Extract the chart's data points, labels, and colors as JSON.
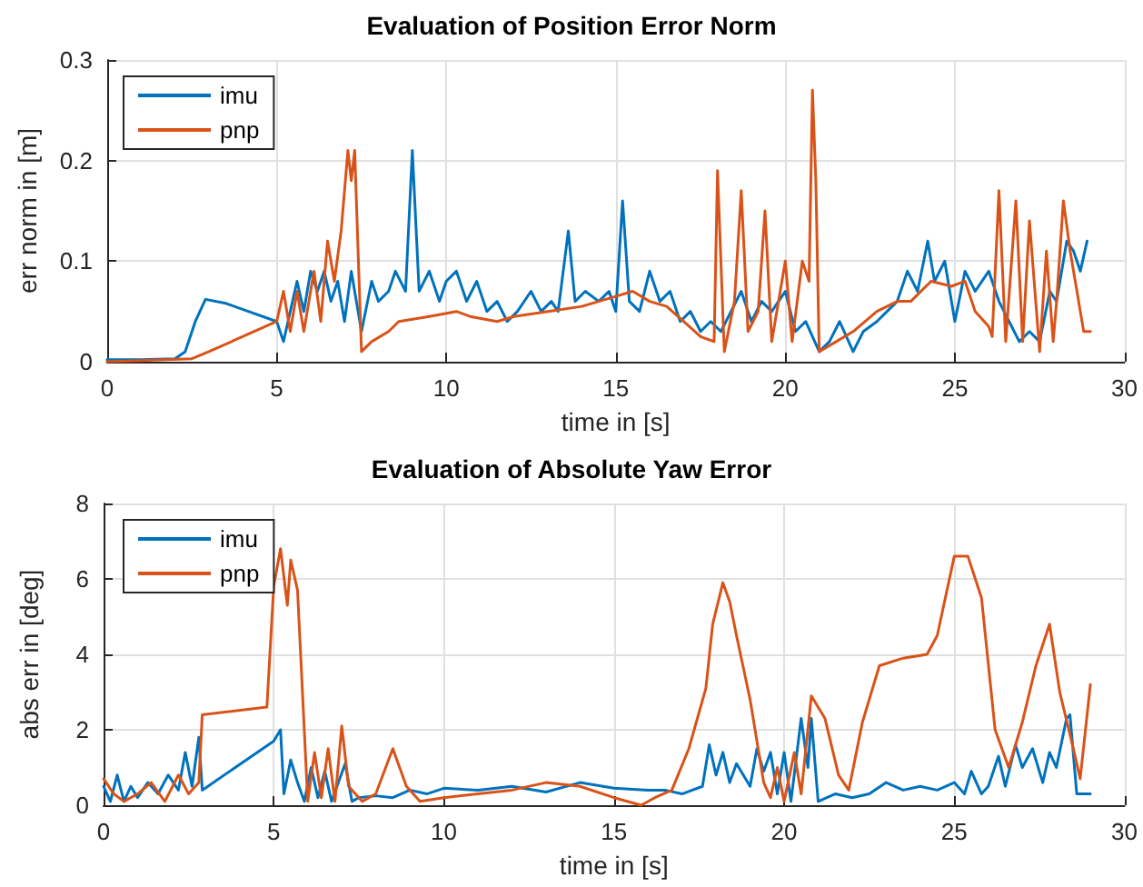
{
  "chart_data": [
    {
      "type": "line",
      "title": "Evaluation of Position Error Norm",
      "xlabel": "time in [s]",
      "ylabel": "err norm in [m]",
      "xlim": [
        0,
        30
      ],
      "xticks": [
        0,
        5,
        10,
        15,
        20,
        25,
        30
      ],
      "ylim": [
        0,
        0.3
      ],
      "yticks": [
        0,
        0.1,
        0.2,
        0.3
      ],
      "grid": true,
      "legend": "top left",
      "series": [
        {
          "name": "imu",
          "color": "#0072bd",
          "x": [
            0,
            1,
            2,
            2.3,
            2.6,
            2.9,
            3.5,
            5,
            5.2,
            5.4,
            5.6,
            5.8,
            6,
            6.2,
            6.4,
            6.6,
            6.8,
            7,
            7.2,
            7.5,
            7.8,
            8,
            8.3,
            8.5,
            8.8,
            9,
            9.2,
            9.5,
            9.8,
            10,
            10.3,
            10.6,
            10.9,
            11.2,
            11.5,
            11.8,
            12.1,
            12.5,
            12.8,
            13.1,
            13.3,
            13.6,
            13.8,
            14.1,
            14.5,
            14.8,
            15,
            15.2,
            15.4,
            15.7,
            16,
            16.3,
            16.6,
            16.9,
            17.2,
            17.5,
            17.8,
            18.1,
            18.4,
            18.7,
            19,
            19.3,
            19.6,
            20,
            20.3,
            20.6,
            21,
            21.3,
            21.6,
            22,
            22.3,
            22.7,
            23,
            23.3,
            23.6,
            23.9,
            24.2,
            24.4,
            24.7,
            25,
            25.3,
            25.6,
            26,
            26.3,
            26.6,
            26.9,
            27.2,
            27.5,
            27.8,
            28,
            28.3,
            28.5,
            28.7,
            28.9
          ],
          "values": [
            0.002,
            0.002,
            0.003,
            0.01,
            0.04,
            0.062,
            0.058,
            0.04,
            0.02,
            0.05,
            0.08,
            0.05,
            0.09,
            0.07,
            0.09,
            0.06,
            0.08,
            0.04,
            0.09,
            0.03,
            0.08,
            0.06,
            0.07,
            0.09,
            0.07,
            0.21,
            0.07,
            0.09,
            0.06,
            0.08,
            0.09,
            0.06,
            0.08,
            0.05,
            0.06,
            0.04,
            0.05,
            0.07,
            0.05,
            0.06,
            0.05,
            0.13,
            0.06,
            0.07,
            0.06,
            0.07,
            0.05,
            0.16,
            0.06,
            0.05,
            0.09,
            0.06,
            0.07,
            0.04,
            0.05,
            0.03,
            0.04,
            0.03,
            0.05,
            0.07,
            0.04,
            0.06,
            0.05,
            0.07,
            0.03,
            0.04,
            0.01,
            0.02,
            0.04,
            0.01,
            0.03,
            0.04,
            0.05,
            0.06,
            0.09,
            0.07,
            0.12,
            0.08,
            0.1,
            0.04,
            0.09,
            0.07,
            0.09,
            0.06,
            0.04,
            0.02,
            0.03,
            0.02,
            0.07,
            0.06,
            0.12,
            0.11,
            0.09,
            0.12
          ]
        },
        {
          "name": "pnp",
          "color": "#d95319",
          "x": [
            0,
            2.5,
            3,
            5,
            5.2,
            5.4,
            5.6,
            5.8,
            6.1,
            6.3,
            6.5,
            6.7,
            6.9,
            7.1,
            7.2,
            7.3,
            7.5,
            7.8,
            8.3,
            8.6,
            9.5,
            10.3,
            10.7,
            11.5,
            12,
            13,
            14,
            15,
            15.5,
            16,
            16.5,
            17,
            17.5,
            17.9,
            18,
            18.2,
            18.5,
            18.7,
            18.9,
            19.2,
            19.4,
            19.6,
            20,
            20.2,
            20.5,
            20.7,
            20.8,
            20.9,
            21,
            21.5,
            22,
            22.7,
            23.3,
            23.7,
            24.3,
            24.9,
            25.3,
            25.6,
            26,
            26.1,
            26.3,
            26.5,
            26.8,
            27,
            27.2,
            27.5,
            27.7,
            27.9,
            28,
            28.2,
            28.4,
            28.8,
            29
          ],
          "values": [
            0,
            0.003,
            0.01,
            0.04,
            0.07,
            0.03,
            0.07,
            0.03,
            0.09,
            0.04,
            0.12,
            0.08,
            0.13,
            0.21,
            0.18,
            0.21,
            0.01,
            0.02,
            0.03,
            0.04,
            0.045,
            0.05,
            0.045,
            0.04,
            0.045,
            0.05,
            0.055,
            0.065,
            0.07,
            0.06,
            0.055,
            0.04,
            0.025,
            0.02,
            0.19,
            0.01,
            0.06,
            0.17,
            0.03,
            0.05,
            0.15,
            0.02,
            0.1,
            0.02,
            0.1,
            0.08,
            0.27,
            0.18,
            0.01,
            0.02,
            0.03,
            0.05,
            0.06,
            0.06,
            0.08,
            0.075,
            0.08,
            0.05,
            0.035,
            0.025,
            0.17,
            0.02,
            0.16,
            0.02,
            0.14,
            0.01,
            0.11,
            0.02,
            0.06,
            0.16,
            0.11,
            0.03,
            0.03
          ]
        }
      ]
    },
    {
      "type": "line",
      "title": "Evaluation of Absolute Yaw Error",
      "xlabel": "time in [s]",
      "ylabel": "abs err in [deg]",
      "xlim": [
        0,
        30
      ],
      "xticks": [
        0,
        5,
        10,
        15,
        20,
        25,
        30
      ],
      "ylim": [
        0,
        8
      ],
      "yticks": [
        0,
        2,
        4,
        6,
        8
      ],
      "grid": true,
      "legend": "top left",
      "series": [
        {
          "name": "imu",
          "color": "#0072bd",
          "x": [
            0,
            0.2,
            0.4,
            0.6,
            0.8,
            1,
            1.3,
            1.6,
            1.9,
            2.2,
            2.4,
            2.6,
            2.8,
            2.9,
            5,
            5.2,
            5.3,
            5.5,
            5.7,
            5.9,
            6.1,
            6.3,
            6.5,
            6.7,
            6.9,
            7.1,
            7.3,
            7.5,
            8,
            8.5,
            9,
            9.5,
            10,
            11,
            12,
            13,
            14,
            15,
            16,
            16.5,
            17,
            17.6,
            17.8,
            18,
            18.2,
            18.4,
            18.6,
            18.8,
            19,
            19.2,
            19.4,
            19.6,
            19.8,
            20,
            20.2,
            20.5,
            20.7,
            20.8,
            21,
            21.5,
            22,
            22.5,
            23,
            23.5,
            24,
            24.5,
            25,
            25.3,
            25.5,
            25.8,
            26,
            26.3,
            26.5,
            26.8,
            27,
            27.3,
            27.6,
            27.8,
            28,
            28.3,
            28.4,
            28.6,
            29
          ],
          "values": [
            0.5,
            0.1,
            0.8,
            0.1,
            0.5,
            0.2,
            0.6,
            0.3,
            0.8,
            0.4,
            1.4,
            0.5,
            1.8,
            0.4,
            1.7,
            2,
            0.3,
            1.2,
            0.6,
            0.1,
            1,
            0.2,
            0.9,
            0.1,
            0.6,
            1.1,
            0.1,
            0.2,
            0.25,
            0.2,
            0.4,
            0.3,
            0.45,
            0.4,
            0.5,
            0.35,
            0.6,
            0.45,
            0.4,
            0.4,
            0.3,
            0.5,
            1.6,
            0.8,
            1.4,
            0.6,
            1.1,
            0.8,
            0.5,
            1.5,
            0.9,
            1.4,
            0.3,
            1.4,
            0.1,
            2.3,
            1,
            2.3,
            0.1,
            0.3,
            0.2,
            0.3,
            0.6,
            0.4,
            0.5,
            0.4,
            0.6,
            0.3,
            0.9,
            0.3,
            0.5,
            1.3,
            0.5,
            1.6,
            1,
            1.5,
            0.6,
            1.4,
            1,
            2.3,
            2.4,
            0.3,
            0.3
          ]
        },
        {
          "name": "pnp",
          "color": "#d95319",
          "x": [
            0,
            0.3,
            0.6,
            1,
            1.4,
            1.8,
            2.2,
            2.5,
            2.8,
            2.9,
            4.8,
            5,
            5.2,
            5.4,
            5.5,
            5.7,
            6,
            6.2,
            6.4,
            6.6,
            6.8,
            7,
            7.2,
            7.6,
            8,
            8.5,
            8.9,
            9.3,
            10,
            11,
            12,
            13,
            14,
            15,
            15.8,
            16.2,
            16.7,
            17.2,
            17.7,
            17.9,
            18.2,
            18.4,
            18.6,
            19,
            19.4,
            19.6,
            19.8,
            20,
            20.3,
            20.5,
            20.8,
            21.2,
            21.6,
            21.9,
            22.3,
            22.8,
            23.5,
            24.2,
            24.5,
            25,
            25.4,
            25.8,
            26.2,
            26.6,
            27,
            27.4,
            27.8,
            28.1,
            28.5,
            28.7,
            29
          ],
          "values": [
            0.7,
            0.3,
            0.1,
            0.3,
            0.6,
            0.1,
            0.8,
            0.3,
            0.6,
            2.4,
            2.6,
            5.8,
            6.8,
            5.3,
            6.5,
            5.7,
            0.1,
            1.4,
            0.2,
            1.5,
            0.1,
            2.1,
            0.5,
            0.1,
            0.3,
            1.5,
            0.5,
            0.1,
            0.2,
            0.3,
            0.4,
            0.6,
            0.5,
            0.2,
            0,
            0.2,
            0.4,
            1.5,
            3.1,
            4.8,
            5.9,
            5.4,
            4.5,
            2.8,
            0.6,
            0.2,
            1,
            0.1,
            1.4,
            0.3,
            2.9,
            2.3,
            0.8,
            0.4,
            2.2,
            3.7,
            3.9,
            4,
            4.5,
            6.6,
            6.6,
            5.5,
            2,
            1,
            2.2,
            3.7,
            4.8,
            3,
            1.5,
            0.7,
            3.2
          ]
        }
      ]
    }
  ]
}
